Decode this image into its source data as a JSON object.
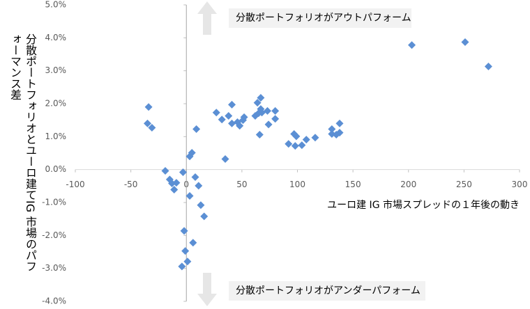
{
  "chart_data": {
    "type": "scatter",
    "y_label": "分散ポートフォリオとユーロ建てIG 市場のパフォーマンス差",
    "x_label": "ユーロ建 IG 市場スプレッドの１年後の動き",
    "annotations": [
      "分散ポートフォリオがアウトパフォーム",
      "分散ポートフォリオがアンダーパフォーム"
    ],
    "color": "#5b8fd4",
    "x": [
      -34,
      -35,
      -31,
      -19,
      -15,
      -13,
      -9,
      -11,
      -3,
      3,
      5,
      9,
      8,
      11,
      3,
      13,
      16,
      -2,
      -1,
      6,
      1,
      -4,
      27,
      32,
      35,
      38,
      41,
      41,
      46,
      48,
      51,
      52,
      62,
      65,
      64,
      67,
      67,
      68,
      66,
      73,
      74,
      80,
      80,
      92,
      97,
      99,
      98,
      104,
      108,
      116,
      131,
      131,
      135,
      138,
      138,
      203,
      251,
      272
    ],
    "values": [
      1.9,
      1.4,
      1.27,
      -0.04,
      -0.3,
      -0.42,
      -0.4,
      -0.61,
      -0.08,
      0.4,
      0.51,
      1.23,
      -0.23,
      -0.49,
      -0.8,
      -1.08,
      -1.42,
      -1.86,
      -2.47,
      -2.22,
      -2.79,
      -2.94,
      1.73,
      1.52,
      0.32,
      1.63,
      1.97,
      1.4,
      1.44,
      1.33,
      1.5,
      1.59,
      1.63,
      1.71,
      2.03,
      2.18,
      1.84,
      1.73,
      1.06,
      1.78,
      1.37,
      1.78,
      1.54,
      0.78,
      1.08,
      1.01,
      0.72,
      0.74,
      0.91,
      0.97,
      1.23,
      1.08,
      1.06,
      1.4,
      1.12,
      3.78,
      3.87,
      3.13
    ],
    "xlim": [
      -100,
      300
    ],
    "xticks": [
      -100,
      -50,
      0,
      50,
      100,
      150,
      200,
      250,
      300
    ],
    "ylim": [
      -4,
      5
    ],
    "yticks": [
      {
        "value": -4,
        "label": "-4.0%"
      },
      {
        "value": -3,
        "label": "-3.0%"
      },
      {
        "value": -2,
        "label": "-2.0%"
      },
      {
        "value": -1,
        "label": "-1.0%"
      },
      {
        "value": 0,
        "label": "0.0%"
      },
      {
        "value": 1,
        "label": "1.0%"
      },
      {
        "value": 2,
        "label": "2.0%"
      },
      {
        "value": 3,
        "label": "3.0%"
      },
      {
        "value": 4,
        "label": "4.0%"
      },
      {
        "value": 5,
        "label": "5.0%"
      }
    ]
  }
}
